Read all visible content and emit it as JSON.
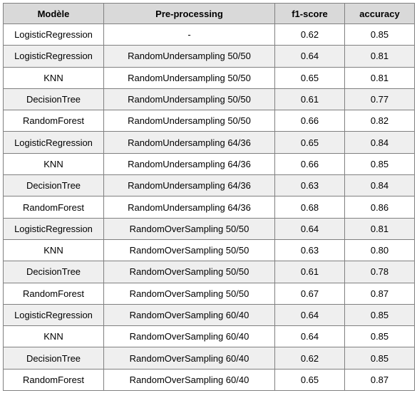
{
  "table": {
    "headers": [
      "Modèle",
      "Pre-processing",
      "f1-score",
      "accuracy"
    ],
    "rows": [
      [
        "LogisticRegression",
        "-",
        "0.62",
        "0.85"
      ],
      [
        "LogisticRegression",
        "RandomUndersampling 50/50",
        "0.64",
        "0.81"
      ],
      [
        "KNN",
        "RandomUndersampling 50/50",
        "0.65",
        "0.81"
      ],
      [
        "DecisionTree",
        "RandomUndersampling 50/50",
        "0.61",
        "0.77"
      ],
      [
        "RandomForest",
        "RandomUndersampling 50/50",
        "0.66",
        "0.82"
      ],
      [
        "LogisticRegression",
        "RandomUndersampling 64/36",
        "0.65",
        "0.84"
      ],
      [
        "KNN",
        "RandomUndersampling 64/36",
        "0.66",
        "0.85"
      ],
      [
        "DecisionTree",
        "RandomUndersampling 64/36",
        "0.63",
        "0.84"
      ],
      [
        "RandomForest",
        "RandomUndersampling 64/36",
        "0.68",
        "0.86"
      ],
      [
        "LogisticRegression",
        "RandomOverSampling 50/50",
        "0.64",
        "0.81"
      ],
      [
        "KNN",
        "RandomOverSampling 50/50",
        "0.63",
        "0.80"
      ],
      [
        "DecisionTree",
        "RandomOverSampling 50/50",
        "0.61",
        "0.78"
      ],
      [
        "RandomForest",
        "RandomOverSampling 50/50",
        "0.67",
        "0.87"
      ],
      [
        "LogisticRegression",
        "RandomOverSampling 60/40",
        "0.64",
        "0.85"
      ],
      [
        "KNN",
        "RandomOverSampling 60/40",
        "0.64",
        "0.85"
      ],
      [
        "DecisionTree",
        "RandomOverSampling 60/40",
        "0.62",
        "0.85"
      ],
      [
        "RandomForest",
        "RandomOverSampling 60/40",
        "0.65",
        "0.87"
      ]
    ]
  },
  "colors": {
    "header_bg": "#d9d9d9",
    "shaded_row_bg": "#efefef",
    "plain_row_bg": "#ffffff",
    "border": "#808080"
  }
}
